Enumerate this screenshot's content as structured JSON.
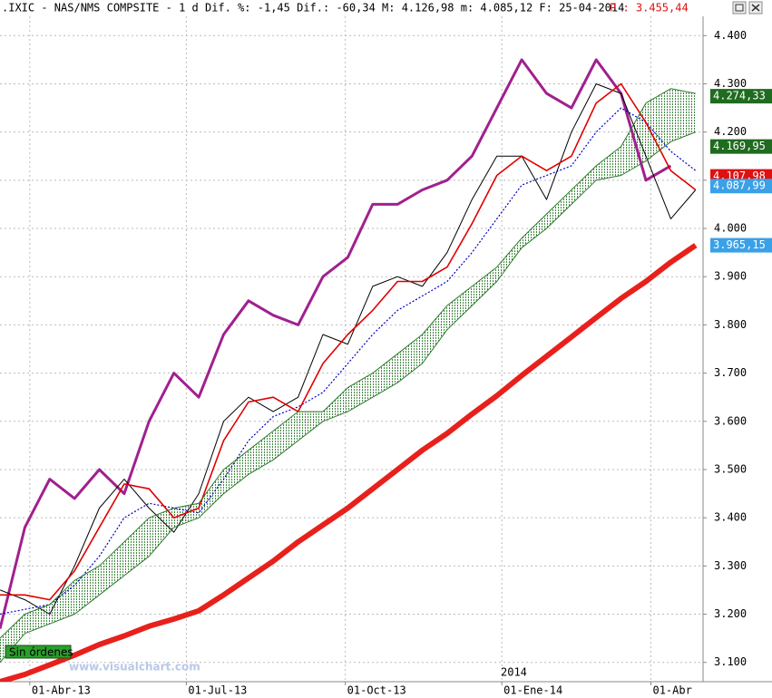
{
  "chart_data": {
    "type": "line",
    "header": ".IXIC - NAS/NMS COMPSITE -  1 d Dif. %: -1,45 Dif.: -60,34 M: 4.126,98 m: 4.085,12 F: 25-04-2014",
    "header_price": "P : 3.455,44",
    "watermark": "www.visualchart.com",
    "status": "Sin órdenes",
    "year_label": "2014",
    "grid": true,
    "xlim": [
      0,
      283
    ],
    "xticks": [
      {
        "value": 12,
        "label": "01-Abr-13"
      },
      {
        "value": 75,
        "label": "01-Jul-13"
      },
      {
        "value": 139,
        "label": "01-Oct-13"
      },
      {
        "value": 202,
        "label": "01-Ene-14"
      },
      {
        "value": 262,
        "label": "01-Abr"
      }
    ],
    "ylim": [
      3060,
      4440
    ],
    "yticks": [
      {
        "value": 3100,
        "label": "3.100"
      },
      {
        "value": 3200,
        "label": "3.200"
      },
      {
        "value": 3300,
        "label": "3.300"
      },
      {
        "value": 3400,
        "label": "3.400"
      },
      {
        "value": 3500,
        "label": "3.500"
      },
      {
        "value": 3600,
        "label": "3.600"
      },
      {
        "value": 3700,
        "label": "3.700"
      },
      {
        "value": 3800,
        "label": "3.800"
      },
      {
        "value": 3900,
        "label": "3.900"
      },
      {
        "value": 4000,
        "label": "4.000"
      },
      {
        "value": 4100,
        "label": "4.100"
      },
      {
        "value": 4200,
        "label": "4.200"
      },
      {
        "value": 4300,
        "label": "4.300"
      },
      {
        "value": 4400,
        "label": "4.400"
      }
    ],
    "x": [
      0,
      10,
      20,
      30,
      40,
      50,
      60,
      70,
      80,
      90,
      100,
      110,
      120,
      130,
      140,
      150,
      160,
      170,
      180,
      190,
      200,
      210,
      220,
      230,
      240,
      250,
      260,
      270,
      280
    ],
    "series": [
      {
        "color": "#a0208f",
        "width": 3,
        "values": [
          3170,
          3380,
          3480,
          3440,
          3500,
          3450,
          3600,
          3700,
          3650,
          3780,
          3850,
          3820,
          3800,
          3900,
          3940,
          4050,
          4050,
          4080,
          4100,
          4150,
          4250,
          4350,
          4280,
          4250,
          4350,
          4280,
          4100,
          4130,
          null
        ]
      },
      {
        "color": "#000000",
        "width": 1,
        "values": [
          3250,
          3230,
          3200,
          3300,
          3420,
          3480,
          3420,
          3370,
          3450,
          3600,
          3650,
          3620,
          3650,
          3780,
          3760,
          3880,
          3900,
          3880,
          3950,
          4060,
          4150,
          4150,
          4060,
          4200,
          4300,
          4280,
          4150,
          4020,
          4080
        ]
      },
      {
        "color": "#0000cc",
        "width": 1.2,
        "dashed": true,
        "values": [
          3200,
          3210,
          3220,
          3260,
          3320,
          3400,
          3430,
          3420,
          3410,
          3480,
          3560,
          3610,
          3630,
          3660,
          3720,
          3780,
          3830,
          3860,
          3890,
          3950,
          4020,
          4090,
          4110,
          4130,
          4200,
          4250,
          4220,
          4160,
          4120
        ]
      },
      {
        "color": "#e00000",
        "width": 1.6,
        "values": [
          3240,
          3240,
          3230,
          3290,
          3380,
          3470,
          3460,
          3400,
          3420,
          3560,
          3640,
          3650,
          3620,
          3720,
          3780,
          3830,
          3890,
          3890,
          3920,
          4010,
          4110,
          4150,
          4120,
          4150,
          4260,
          4300,
          4220,
          4120,
          4080
        ]
      },
      {
        "color": "#2a7a2a",
        "width": 1,
        "values": [
          3150,
          3200,
          3220,
          3270,
          3300,
          3350,
          3400,
          3420,
          3430,
          3500,
          3540,
          3580,
          3620,
          3620,
          3670,
          3700,
          3740,
          3780,
          3840,
          3880,
          3920,
          3980,
          4030,
          4080,
          4130,
          4170,
          4260,
          4290,
          4280
        ]
      },
      {
        "color": "#2a7a2a",
        "width": 1,
        "values": [
          3100,
          3160,
          3180,
          3200,
          3240,
          3280,
          3320,
          3380,
          3400,
          3450,
          3490,
          3520,
          3560,
          3600,
          3620,
          3650,
          3680,
          3720,
          3790,
          3840,
          3890,
          3960,
          4000,
          4050,
          4100,
          4110,
          4140,
          4180,
          4200
        ]
      },
      {
        "color": "#e8201c",
        "width": 6,
        "values": [
          3060,
          3075,
          3095,
          3115,
          3137,
          3155,
          3175,
          3190,
          3207,
          3240,
          3275,
          3310,
          3350,
          3385,
          3420,
          3460,
          3500,
          3540,
          3575,
          3615,
          3653,
          3695,
          3735,
          3775,
          3815,
          3855,
          3890,
          3930,
          3965
        ]
      }
    ],
    "cloud": [
      4,
      5
    ],
    "price_tags": [
      {
        "value": 4274.33,
        "label": "4.274,33",
        "color": "#1f6b1f"
      },
      {
        "value": 4169.95,
        "label": "4.169,95",
        "color": "#1f6b1f"
      },
      {
        "value": 4107.98,
        "label": "4.107,98",
        "color": "#e01010"
      },
      {
        "value": 4087.99,
        "label": "4.087,99",
        "color": "#3aa0e8"
      },
      {
        "value": 3965.15,
        "label": "3.965,15",
        "color": "#3aa0e8"
      }
    ]
  }
}
